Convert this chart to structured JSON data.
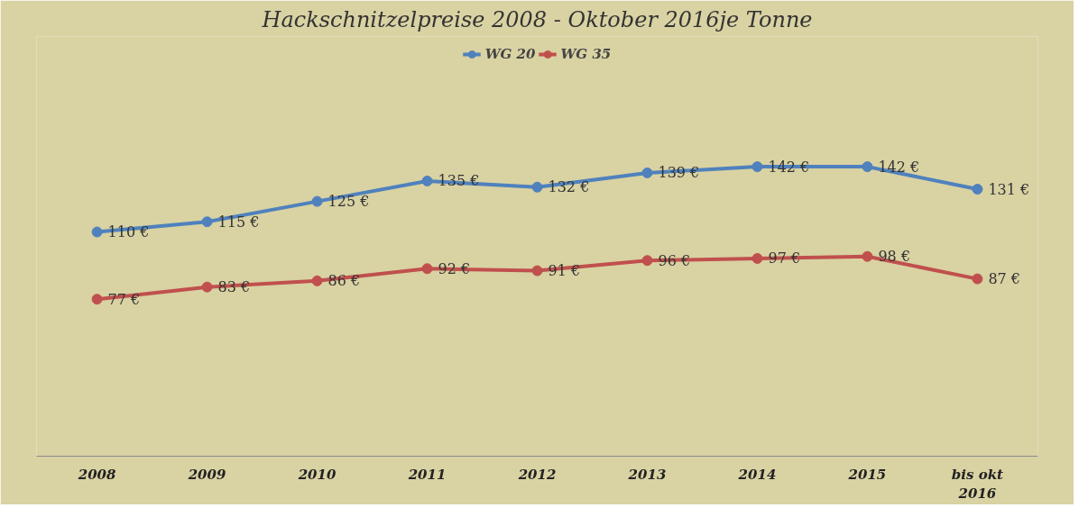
{
  "chart_data": {
    "type": "line",
    "title": "Hackschnitzelpreise 2008 - Oktober 2016je Tonne",
    "categories": [
      "2008",
      "2009",
      "2010",
      "2011",
      "2012",
      "2013",
      "2014",
      "2015",
      "bis okt\n2016"
    ],
    "series": [
      {
        "name": "WG 20",
        "color": "#4f81bd",
        "values": [
          110,
          115,
          125,
          135,
          132,
          139,
          142,
          142,
          131
        ],
        "value_labels": [
          "110 €",
          "115 €",
          "125 €",
          "135 €",
          "132 €",
          "139 €",
          "142 €",
          "142 €",
          "131 €"
        ]
      },
      {
        "name": "WG 35",
        "color": "#c0504d",
        "values": [
          77,
          83,
          86,
          92,
          91,
          96,
          97,
          98,
          87
        ],
        "value_labels": [
          "77 €",
          "83 €",
          "86 €",
          "92 €",
          "91 €",
          "96 €",
          "97 €",
          "98 €",
          "87 €"
        ]
      }
    ],
    "marker": "circle",
    "line_style": "solid",
    "legend": "top",
    "tick_labels": "x"
  }
}
